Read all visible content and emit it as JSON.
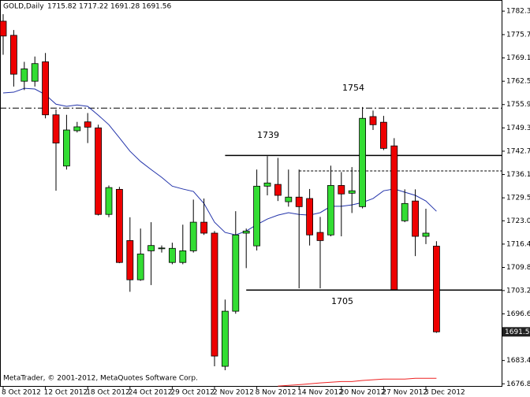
{
  "chart_data": {
    "type": "candlestick",
    "title": "GOLD,Daily",
    "copyright": "MetaTrader, © 2001-2012, MetaQuotes Software Corp.",
    "categories": [
      "8 Oct 2012",
      null,
      null,
      null,
      "12 Oct 2012",
      null,
      null,
      null,
      "18 Oct 2012",
      null,
      null,
      null,
      "24 Oct 2012",
      null,
      null,
      null,
      "29 Oct 2012",
      null,
      null,
      null,
      "2 Nov 2012",
      null,
      null,
      null,
      "8 Nov 2012",
      null,
      null,
      null,
      "14 Nov 2012",
      null,
      null,
      null,
      "20 Nov 2012",
      null,
      null,
      null,
      "27 Nov 2012",
      null,
      null,
      null,
      "3 Dec 2012",
      null
    ],
    "open": [
      1779.5,
      1775.5,
      1762.5,
      1762.5,
      1768.0,
      1753.0,
      1738.5,
      1748.5,
      1751.0,
      1749.3,
      1724.8,
      1731.9,
      1717.4,
      1706.3,
      1714.5,
      1715.2,
      1711.2,
      1711.2,
      1714.5,
      1722.6,
      1719.5,
      1681.8,
      1697.4,
      1719.5,
      1715.9,
      1732.8,
      1733.3,
      1728.4,
      1729.7,
      1729.3,
      1719.7,
      1719.0,
      1733.0,
      1730.8,
      1727.0,
      1752.5,
      1750.9,
      1744.2,
      1723.0,
      1728.6,
      1718.6,
      1715.82
    ],
    "high": [
      1781.5,
      1777.0,
      1768.0,
      1769.5,
      1770.5,
      1754.5,
      1753.0,
      1751.0,
      1753.5,
      1750.2,
      1733.0,
      1732.6,
      1724.0,
      1720.8,
      1722.6,
      1716.0,
      1716.8,
      1721.9,
      1729.0,
      1729.3,
      1720.1,
      1700.7,
      1725.7,
      1720.8,
      1737.5,
      1741.3,
      1740.8,
      1737.5,
      1737.5,
      1732.0,
      1724.1,
      1738.6,
      1736.8,
      1738.2,
      1755.2,
      1754.2,
      1752.7,
      1746.4,
      1731.9,
      1731.9,
      1726.4,
      1717.22
    ],
    "low": [
      1770.0,
      1761.0,
      1760.0,
      1761.0,
      1752.0,
      1731.5,
      1737.5,
      1748.0,
      1745.0,
      1724.5,
      1724.0,
      1711.0,
      1702.9,
      1706.0,
      1704.8,
      1714.0,
      1710.7,
      1710.7,
      1714.0,
      1719.0,
      1681.8,
      1680.7,
      1696.7,
      1709.6,
      1714.6,
      1730.2,
      1728.6,
      1727.0,
      1703.9,
      1716.0,
      1703.9,
      1718.6,
      1718.6,
      1725.2,
      1726.5,
      1748.7,
      1743.0,
      1703.25,
      1722.6,
      1713.0,
      1716.4,
      1691.28
    ],
    "close": [
      1775.3,
      1764.5,
      1766.0,
      1767.5,
      1753.0,
      1745.0,
      1748.7,
      1749.6,
      1749.5,
      1724.8,
      1732.4,
      1711.2,
      1706.3,
      1713.6,
      1716.0,
      1715.3,
      1715.2,
      1714.5,
      1722.6,
      1719.5,
      1684.7,
      1697.4,
      1719.0,
      1720.1,
      1732.8,
      1733.7,
      1730.2,
      1729.7,
      1727.0,
      1719.0,
      1717.4,
      1733.0,
      1730.6,
      1731.5,
      1752.0,
      1750.2,
      1743.5,
      1703.5,
      1727.9,
      1718.6,
      1719.5,
      1691.56
    ],
    "up_color": "#33dd33",
    "down_color": "#ee0000",
    "overlays": [
      {
        "color": "#2233aa",
        "values": [
          1759.2,
          1759.4,
          1760.5,
          1760.3,
          1758.7,
          1756.0,
          1755.4,
          1755.8,
          1755.4,
          1752.9,
          1750.2,
          1746.5,
          1742.7,
          1739.8,
          1737.5,
          1735.3,
          1732.8,
          1732.0,
          1731.3,
          1727.9,
          1722.6,
          1719.7,
          1719.0,
          1720.1,
          1721.9,
          1723.5,
          1724.6,
          1725.3,
          1724.8,
          1724.6,
          1725.3,
          1727.1,
          1727.1,
          1727.5,
          1728.2,
          1729.3,
          1731.5,
          1732.0,
          1731.1,
          1730.2,
          1728.6,
          1725.7
        ]
      },
      {
        "color": "#ee2222",
        "values": [
          null,
          null,
          null,
          null,
          null,
          null,
          null,
          null,
          null,
          null,
          null,
          null,
          null,
          null,
          null,
          null,
          null,
          null,
          null,
          null,
          null,
          null,
          null,
          null,
          null,
          null,
          1676.2,
          1676.4,
          1676.6,
          1676.85,
          1677.1,
          1677.3,
          1677.5,
          1677.5,
          1677.8,
          1678.0,
          1678.2,
          1678.2,
          1678.2,
          1678.4,
          1678.4,
          1678.4
        ]
      }
    ],
    "levels": [
      {
        "value": 1754.9,
        "from_category": 0,
        "style": "dashdot"
      },
      {
        "value": 1741.5,
        "from_category": 21,
        "style": "solid"
      },
      {
        "value": 1737.1,
        "from_category": 28,
        "style": "dotted"
      },
      {
        "value": 1703.4,
        "from_category": 23,
        "style": "solid"
      }
    ],
    "annotations": [
      "1739",
      "1754",
      "1705"
    ],
    "ylim": [
      1674.9,
      1785.5
    ],
    "yticks": [
      1782.35,
      {
        "value": 1775.7,
        "label": "1775.70"
      },
      {
        "value": 1769.1,
        "label": "1769.10"
      },
      {
        "value": 1762.5,
        "label": "1762.50"
      },
      {
        "value": 1755.9,
        "label": "1755.90"
      },
      {
        "value": 1749.3,
        "label": "1749.30"
      },
      {
        "value": 1742.7,
        "label": "1742.70"
      },
      {
        "value": 1736.1,
        "label": "1736.10"
      },
      {
        "value": 1729.5,
        "label": "1729.50"
      },
      {
        "value": 1723.0,
        "label": "1723.00"
      },
      {
        "value": 1716.4,
        "label": "1716.40"
      },
      {
        "value": 1709.8,
        "label": "1709.80"
      },
      1703.25,
      1696.65,
      1683.45,
      1676.85
    ]
  }
}
